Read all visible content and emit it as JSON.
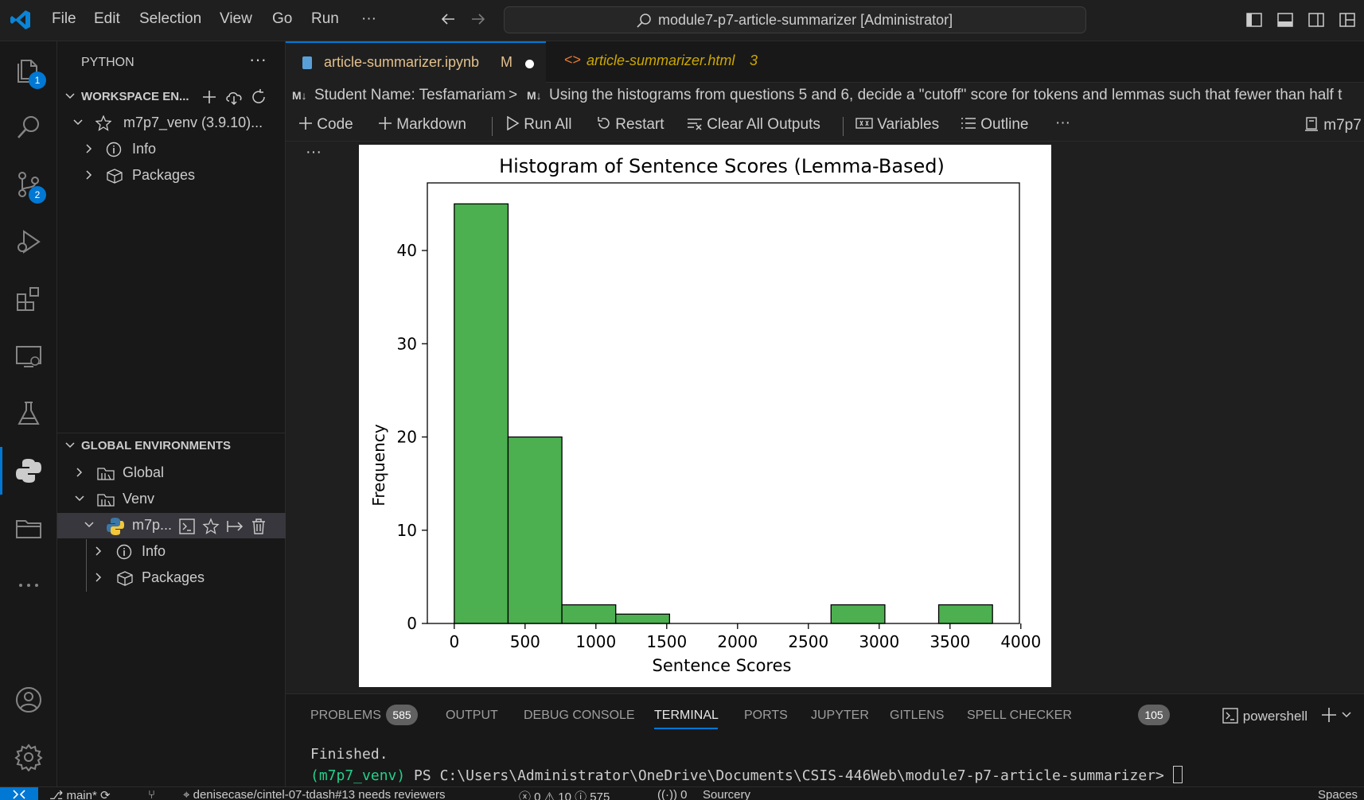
{
  "titlebar": {
    "menu": [
      "File",
      "Edit",
      "Selection",
      "View",
      "Go",
      "Run",
      "···"
    ],
    "search_text": "module7-p7-article-summarizer [Administrator]"
  },
  "activity": {
    "explorer_badge": "1",
    "scm_badge": "2"
  },
  "sidebar": {
    "title": "PYTHON",
    "workspace_header": "WORKSPACE EN...",
    "ws_env": "m7p7_venv (3.9.10)...",
    "ws_info": "Info",
    "ws_packages": "Packages",
    "global_header": "GLOBAL ENVIRONMENTS",
    "global": "Global",
    "venv": "Venv",
    "venv_env": "m7p...",
    "venv_info": "Info",
    "venv_packages": "Packages"
  },
  "tabs": [
    {
      "label": "article-summarizer.ipynb",
      "suffix": "M"
    },
    {
      "label": "article-summarizer.html",
      "suffix": "3"
    }
  ],
  "breadcrumb": {
    "tag1": "M↓",
    "part1": "Student Name: Tesfamariam",
    "tag2": "M↓",
    "part2": "Using the histograms from questions 5 and 6, decide a \"cutoff\" score for tokens and lemmas such that fewer than half t"
  },
  "toolbar": {
    "code": "Code",
    "markdown": "Markdown",
    "run_all": "Run All",
    "restart": "Restart",
    "clear": "Clear All Outputs",
    "variables": "Variables",
    "outline": "Outline",
    "more": "···",
    "kernel": "m7p7"
  },
  "cell": {
    "more": "···"
  },
  "chart_data": {
    "type": "bar",
    "title": "Histogram of Sentence Scores (Lemma-Based)",
    "xlabel": "Sentence Scores",
    "ylabel": "Frequency",
    "bins": [
      {
        "start": 0,
        "end": 380,
        "count": 45
      },
      {
        "start": 380,
        "end": 760,
        "count": 20
      },
      {
        "start": 760,
        "end": 1140,
        "count": 2
      },
      {
        "start": 1140,
        "end": 1520,
        "count": 1
      },
      {
        "start": 1520,
        "end": 1900,
        "count": 0
      },
      {
        "start": 1900,
        "end": 2280,
        "count": 0
      },
      {
        "start": 2280,
        "end": 2660,
        "count": 0
      },
      {
        "start": 2660,
        "end": 3040,
        "count": 2
      },
      {
        "start": 3040,
        "end": 3420,
        "count": 0
      },
      {
        "start": 3420,
        "end": 3800,
        "count": 2
      }
    ],
    "xlim": [
      -190,
      3990
    ],
    "ylim": [
      0,
      47.25
    ],
    "xticks": [
      "0",
      "500",
      "1000",
      "1500",
      "2000",
      "2500",
      "3000",
      "3500",
      "4000"
    ],
    "yticks": [
      "0",
      "10",
      "20",
      "30",
      "40"
    ],
    "bar_color": "#4caf50"
  },
  "panel": {
    "tabs": [
      "PROBLEMS",
      "OUTPUT",
      "DEBUG CONSOLE",
      "TERMINAL",
      "PORTS",
      "JUPYTER",
      "GITLENS",
      "SPELL CHECKER"
    ],
    "problems_count": "585",
    "spell_count": "105",
    "shell": "powershell",
    "term_line1": "Finished.",
    "term_venv": "(m7p7_venv)",
    "term_prompt": " PS C:\\Users\\Administrator\\OneDrive\\Documents\\CSIS-446Web\\module7-p7-article-summarizer> "
  },
  "statusbar": {
    "branch": "main*",
    "pr": "denisecase/cintel-07-tdash#13 needs reviewers",
    "problems": "ⓧ 0 ⚠ 10 ⓘ 575",
    "ports": "0",
    "sourcery": "Sourcery",
    "spaces": "Spaces"
  }
}
